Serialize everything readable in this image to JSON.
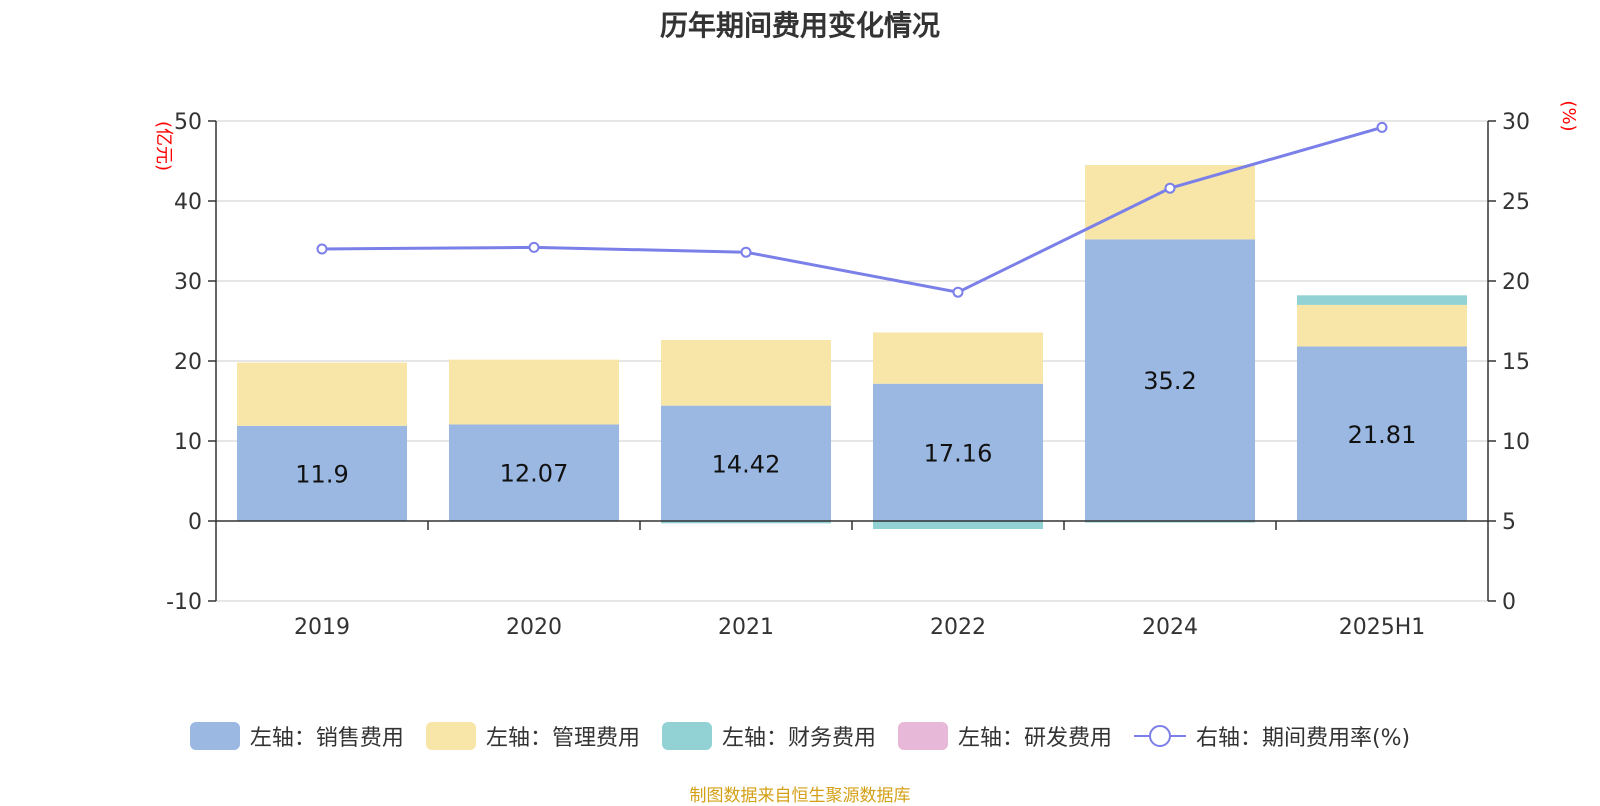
{
  "chart_data": {
    "type": "bar",
    "title": "历年期间费用变化情况",
    "categories": [
      "2019",
      "2020",
      "2021",
      "2022",
      "2024",
      "2025H1"
    ],
    "series": [
      {
        "name": "左轴：销售费用",
        "type": "bar",
        "axis": "left",
        "values": [
          11.9,
          12.07,
          14.42,
          17.16,
          35.2,
          21.81
        ],
        "labels": [
          "11.9",
          "12.07",
          "14.42",
          "17.16",
          "35.2",
          "21.81"
        ]
      },
      {
        "name": "左轴：管理费用",
        "type": "bar",
        "axis": "left",
        "values": [
          7.9,
          8.1,
          8.2,
          6.4,
          9.3,
          5.2
        ]
      },
      {
        "name": "左轴：财务费用",
        "type": "bar",
        "axis": "left",
        "values": [
          0,
          0,
          -0.3,
          -1.0,
          -0.2,
          1.2
        ]
      },
      {
        "name": "左轴：研发费用",
        "type": "bar",
        "axis": "left",
        "values": [
          0,
          0,
          0,
          0,
          0,
          0
        ]
      },
      {
        "name": "右轴：期间费用率(%)",
        "type": "line",
        "axis": "right",
        "values": [
          22.0,
          22.1,
          21.8,
          19.3,
          25.8,
          29.6
        ]
      }
    ],
    "left_axis": {
      "unit": "(亿元)",
      "ylim": [
        -10,
        50
      ],
      "ticks": [
        -10,
        0,
        10,
        20,
        30,
        40,
        50
      ]
    },
    "right_axis": {
      "unit": "(%)",
      "ylim": [
        0,
        30
      ],
      "ticks": [
        0,
        5,
        10,
        15,
        20,
        25,
        30
      ]
    },
    "grid": true,
    "legend_position": "bottom",
    "colors": {
      "sales": "#9bb8e2",
      "admin": "#f7e6a8",
      "finance": "#92d2d4",
      "rnd": "#e8b8d9",
      "line": "#7b7fe8",
      "unit": "#ff0000",
      "source": "#d4a017"
    }
  },
  "source_note": "制图数据来自恒生聚源数据库"
}
